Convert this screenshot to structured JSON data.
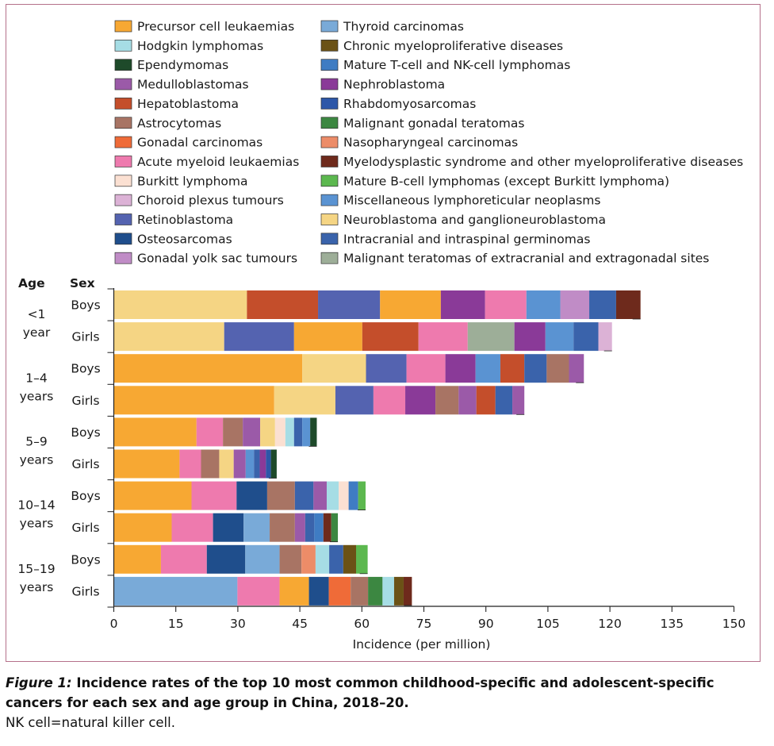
{
  "chart_data": {
    "type": "bar",
    "orientation": "horizontal",
    "stacked": true,
    "xlabel": "Incidence (per million)",
    "xlim": [
      0,
      150
    ],
    "xticks": [
      0,
      15,
      30,
      45,
      60,
      75,
      90,
      105,
      120,
      135,
      150
    ],
    "age_header": "Age",
    "sex_header": "Sex",
    "legend_position": "top",
    "categories_legend": [
      {
        "name": "Precursor cell leukaemias",
        "color": "#f7a833"
      },
      {
        "name": "Hodgkin lymphomas",
        "color": "#a6dde5"
      },
      {
        "name": "Ependymomas",
        "color": "#1e4a2a"
      },
      {
        "name": "Medulloblastomas",
        "color": "#9b5aa8"
      },
      {
        "name": "Hepatoblastoma",
        "color": "#c44e2b"
      },
      {
        "name": "Astrocytomas",
        "color": "#a87464"
      },
      {
        "name": "Gonadal carcinomas",
        "color": "#ef6b38"
      },
      {
        "name": "Acute myeloid leukaemias",
        "color": "#ee7aae"
      },
      {
        "name": "Burkitt lymphoma",
        "color": "#fbe0d2"
      },
      {
        "name": "Choroid plexus tumours",
        "color": "#dcb2d6"
      },
      {
        "name": "Retinoblastoma",
        "color": "#5463b0"
      },
      {
        "name": "Osteosarcomas",
        "color": "#1f4e8c"
      },
      {
        "name": "Gonadal yolk sac tumours",
        "color": "#c08cc6"
      },
      {
        "name": "Thyroid carcinomas",
        "color": "#79aad8"
      },
      {
        "name": "Chronic myeloproliferative diseases",
        "color": "#6b5216"
      },
      {
        "name": "Mature T-cell and NK-cell lymphomas",
        "color": "#3f7cc3"
      },
      {
        "name": "Nephroblastoma",
        "color": "#8a3a98"
      },
      {
        "name": "Rhabdomyosarcomas",
        "color": "#2d57a8"
      },
      {
        "name": "Malignant gonadal teratomas",
        "color": "#3c8741"
      },
      {
        "name": "Nasopharyngeal carcinomas",
        "color": "#ec8c68"
      },
      {
        "name": "Myelodysplastic syndrome and other myeloproliferative diseases",
        "color": "#6e2a1c"
      },
      {
        "name": "Mature B-cell lymphomas (except Burkitt lymphoma)",
        "color": "#5cb84f"
      },
      {
        "name": "Miscellaneous lymphoreticular neoplasms",
        "color": "#5a93d2"
      },
      {
        "name": "Neuroblastoma and ganglioneuroblastoma",
        "color": "#f5d584"
      },
      {
        "name": "Intracranial and intraspinal germinomas",
        "color": "#3a63ab"
      },
      {
        "name": "Malignant teratomas of extracranial and extragonadal sites",
        "color": "#9dae98"
      }
    ],
    "age_groups": [
      {
        "label": "<1",
        "label2": "year"
      },
      {
        "label": "1–4",
        "label2": "years"
      },
      {
        "label": "5–9",
        "label2": "years"
      },
      {
        "label": "10–14",
        "label2": "years"
      },
      {
        "label": "15–19",
        "label2": "years"
      }
    ],
    "bars": [
      {
        "sex": "Boys",
        "age_index": 0,
        "segments": [
          {
            "category": "Neuroblastoma and ganglioneuroblastoma",
            "value": 32.2
          },
          {
            "category": "Hepatoblastoma",
            "value": 17.2
          },
          {
            "category": "Retinoblastoma",
            "value": 15.0
          },
          {
            "category": "Precursor cell leukaemias",
            "value": 14.7
          },
          {
            "category": "Nephroblastoma",
            "value": 10.7
          },
          {
            "category": "Acute myeloid leukaemias",
            "value": 10.0
          },
          {
            "category": "Miscellaneous lymphoreticular neoplasms",
            "value": 8.2
          },
          {
            "category": "Gonadal yolk sac tumours",
            "value": 7.0
          },
          {
            "category": "Intracranial and intraspinal germinomas",
            "value": 6.5
          },
          {
            "category": "Myelodysplastic syndrome and other myeloproliferative diseases",
            "value": 5.9
          }
        ]
      },
      {
        "sex": "Girls",
        "age_index": 0,
        "segments": [
          {
            "category": "Neuroblastoma and ganglioneuroblastoma",
            "value": 26.7
          },
          {
            "category": "Retinoblastoma",
            "value": 16.9
          },
          {
            "category": "Precursor cell leukaemias",
            "value": 16.5
          },
          {
            "category": "Hepatoblastoma",
            "value": 13.6
          },
          {
            "category": "Acute myeloid leukaemias",
            "value": 11.9
          },
          {
            "category": "Malignant teratomas of extracranial and extragonadal sites",
            "value": 11.3
          },
          {
            "category": "Nephroblastoma",
            "value": 7.5
          },
          {
            "category": "Miscellaneous lymphoreticular neoplasms",
            "value": 6.8
          },
          {
            "category": "Intracranial and intraspinal germinomas",
            "value": 6.0
          },
          {
            "category": "Choroid plexus tumours",
            "value": 3.3
          }
        ]
      },
      {
        "sex": "Boys",
        "age_index": 1,
        "segments": [
          {
            "category": "Precursor cell leukaemias",
            "value": 45.6
          },
          {
            "category": "Neuroblastoma and ganglioneuroblastoma",
            "value": 15.4
          },
          {
            "category": "Retinoblastoma",
            "value": 9.8
          },
          {
            "category": "Acute myeloid leukaemias",
            "value": 9.4
          },
          {
            "category": "Nephroblastoma",
            "value": 7.3
          },
          {
            "category": "Miscellaneous lymphoreticular neoplasms",
            "value": 6.0
          },
          {
            "category": "Hepatoblastoma",
            "value": 5.8
          },
          {
            "category": "Intracranial and intraspinal germinomas",
            "value": 5.4
          },
          {
            "category": "Astrocytomas",
            "value": 5.4
          },
          {
            "category": "Medulloblastomas",
            "value": 3.6
          }
        ]
      },
      {
        "sex": "Girls",
        "age_index": 1,
        "segments": [
          {
            "category": "Precursor cell leukaemias",
            "value": 38.8
          },
          {
            "category": "Neuroblastoma and ganglioneuroblastoma",
            "value": 14.8
          },
          {
            "category": "Retinoblastoma",
            "value": 9.2
          },
          {
            "category": "Acute myeloid leukaemias",
            "value": 7.7
          },
          {
            "category": "Nephroblastoma",
            "value": 7.3
          },
          {
            "category": "Astrocytomas",
            "value": 5.6
          },
          {
            "category": "Medulloblastomas",
            "value": 4.3
          },
          {
            "category": "Hepatoblastoma",
            "value": 4.6
          },
          {
            "category": "Intracranial and intraspinal germinomas",
            "value": 4.1
          },
          {
            "category": "Medulloblastomas",
            "value": 2.9
          }
        ]
      },
      {
        "sex": "Boys",
        "age_index": 2,
        "segments": [
          {
            "category": "Precursor cell leukaemias",
            "value": 20.0
          },
          {
            "category": "Acute myeloid leukaemias",
            "value": 6.4
          },
          {
            "category": "Astrocytomas",
            "value": 4.8
          },
          {
            "category": "Medulloblastomas",
            "value": 4.2
          },
          {
            "category": "Neuroblastoma and ganglioneuroblastoma",
            "value": 3.6
          },
          {
            "category": "Burkitt lymphoma",
            "value": 2.5
          },
          {
            "category": "Hodgkin lymphomas",
            "value": 2.1
          },
          {
            "category": "Intracranial and intraspinal germinomas",
            "value": 2.0
          },
          {
            "category": "Miscellaneous lymphoreticular neoplasms",
            "value": 1.9
          },
          {
            "category": "Ependymomas",
            "value": 1.6
          }
        ]
      },
      {
        "sex": "Girls",
        "age_index": 2,
        "segments": [
          {
            "category": "Precursor cell leukaemias",
            "value": 15.9
          },
          {
            "category": "Acute myeloid leukaemias",
            "value": 5.2
          },
          {
            "category": "Astrocytomas",
            "value": 4.4
          },
          {
            "category": "Neuroblastoma and ganglioneuroblastoma",
            "value": 3.5
          },
          {
            "category": "Medulloblastomas",
            "value": 2.9
          },
          {
            "category": "Miscellaneous lymphoreticular neoplasms",
            "value": 2.0
          },
          {
            "category": "Intracranial and intraspinal germinomas",
            "value": 1.4
          },
          {
            "category": "Nephroblastoma",
            "value": 1.5
          },
          {
            "category": "Rhabdomyosarcomas",
            "value": 1.2
          },
          {
            "category": "Ependymomas",
            "value": 1.4
          }
        ]
      },
      {
        "sex": "Boys",
        "age_index": 3,
        "segments": [
          {
            "category": "Precursor cell leukaemias",
            "value": 18.8
          },
          {
            "category": "Acute myeloid leukaemias",
            "value": 10.9
          },
          {
            "category": "Osteosarcomas",
            "value": 7.4
          },
          {
            "category": "Astrocytomas",
            "value": 6.7
          },
          {
            "category": "Intracranial and intraspinal germinomas",
            "value": 4.5
          },
          {
            "category": "Medulloblastomas",
            "value": 3.2
          },
          {
            "category": "Hodgkin lymphomas",
            "value": 2.9
          },
          {
            "category": "Burkitt lymphoma",
            "value": 2.4
          },
          {
            "category": "Mature T-cell and NK-cell lymphomas",
            "value": 2.3
          },
          {
            "category": "Mature B-cell lymphomas (except Burkitt lymphoma)",
            "value": 1.8
          }
        ]
      },
      {
        "sex": "Girls",
        "age_index": 3,
        "segments": [
          {
            "category": "Precursor cell leukaemias",
            "value": 14.0
          },
          {
            "category": "Acute myeloid leukaemias",
            "value": 10.0
          },
          {
            "category": "Osteosarcomas",
            "value": 7.4
          },
          {
            "category": "Thyroid carcinomas",
            "value": 6.3
          },
          {
            "category": "Astrocytomas",
            "value": 6.1
          },
          {
            "category": "Medulloblastomas",
            "value": 2.5
          },
          {
            "category": "Intracranial and intraspinal germinomas",
            "value": 2.2
          },
          {
            "category": "Mature T-cell and NK-cell lymphomas",
            "value": 2.2
          },
          {
            "category": "Myelodysplastic syndrome and other myeloproliferative diseases",
            "value": 1.9
          },
          {
            "category": "Malignant gonadal teratomas",
            "value": 1.6
          }
        ]
      },
      {
        "sex": "Boys",
        "age_index": 4,
        "segments": [
          {
            "category": "Precursor cell leukaemias",
            "value": 11.4
          },
          {
            "category": "Acute myeloid leukaemias",
            "value": 11.1
          },
          {
            "category": "Osteosarcomas",
            "value": 9.3
          },
          {
            "category": "Thyroid carcinomas",
            "value": 8.3
          },
          {
            "category": "Astrocytomas",
            "value": 5.3
          },
          {
            "category": "Nasopharyngeal carcinomas",
            "value": 3.4
          },
          {
            "category": "Hodgkin lymphomas",
            "value": 3.3
          },
          {
            "category": "Intracranial and intraspinal germinomas",
            "value": 3.4
          },
          {
            "category": "Chronic myeloproliferative diseases",
            "value": 3.1
          },
          {
            "category": "Mature B-cell lymphomas (except Burkitt lymphoma)",
            "value": 2.8
          }
        ]
      },
      {
        "sex": "Girls",
        "age_index": 4,
        "segments": [
          {
            "category": "Thyroid carcinomas",
            "value": 29.9
          },
          {
            "category": "Acute myeloid leukaemias",
            "value": 10.2
          },
          {
            "category": "Precursor cell leukaemias",
            "value": 7.1
          },
          {
            "category": "Osteosarcomas",
            "value": 4.8
          },
          {
            "category": "Gonadal carcinomas",
            "value": 5.3
          },
          {
            "category": "Astrocytomas",
            "value": 4.2
          },
          {
            "category": "Malignant gonadal teratomas",
            "value": 3.5
          },
          {
            "category": "Hodgkin lymphomas",
            "value": 2.8
          },
          {
            "category": "Chronic myeloproliferative diseases",
            "value": 2.3
          },
          {
            "category": "Myelodysplastic syndrome and other myeloproliferative diseases",
            "value": 2.0
          }
        ]
      }
    ]
  },
  "caption": {
    "fig_label": "Figure 1:",
    "title": " Incidence rates of the top 10 most common childhood-specific and adolescent-specific cancers for each sex and age group in China, 2018–20.",
    "note": "NK cell=natural killer cell."
  }
}
